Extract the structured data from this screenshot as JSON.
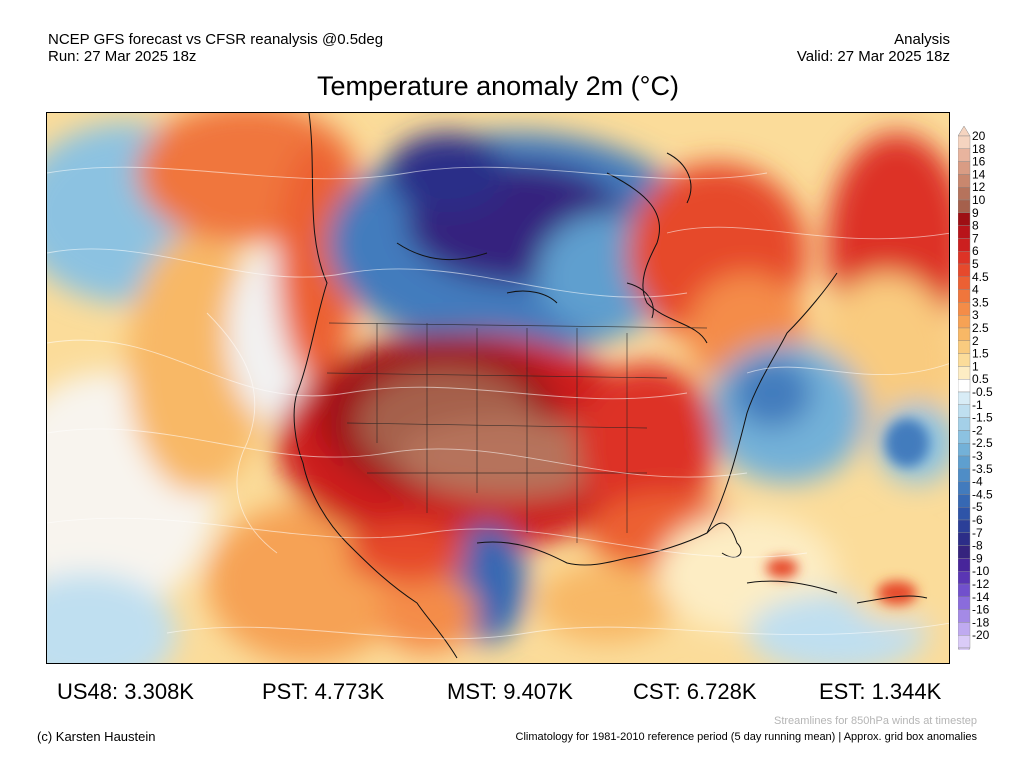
{
  "header": {
    "line1_left": "NCEP GFS forecast vs CFSR reanalysis @0.5deg",
    "line2_left": "Run: 27 Mar 2025 18z",
    "line1_right": "Analysis",
    "line2_right": "Valid: 27 Mar 2025 18z"
  },
  "title": "Temperature anomaly 2m (°C)",
  "colorbar": {
    "labels": [
      "20",
      "18",
      "16",
      "14",
      "12",
      "10",
      "9",
      "8",
      "7",
      "6",
      "5",
      "4.5",
      "4",
      "3.5",
      "3",
      "2.5",
      "2",
      "1.5",
      "1",
      "0.5",
      "-0.5",
      "-1",
      "-1.5",
      "-2",
      "-2.5",
      "-3",
      "-3.5",
      "-4",
      "-4.5",
      "-5",
      "-6",
      "-7",
      "-8",
      "-9",
      "-10",
      "-12",
      "-14",
      "-16",
      "-18",
      "-20"
    ],
    "colors": [
      "#f5d4c0",
      "#e8b49e",
      "#d99c84",
      "#c9876e",
      "#b6735c",
      "#a5604c",
      "#9e0f14",
      "#b8141a",
      "#cc1f1f",
      "#dd3326",
      "#e6492c",
      "#ec6033",
      "#f0763c",
      "#f48c48",
      "#f6a255",
      "#f8b866",
      "#f9cb7f",
      "#fbdc9a",
      "#fdedc4",
      "#ffffff",
      "#d8ecf6",
      "#bfdff0",
      "#a4d0e8",
      "#8cc2e1",
      "#73b1d8",
      "#5e9fcf",
      "#4f8dc6",
      "#427bbd",
      "#3668b3",
      "#2e54a8",
      "#2b3f98",
      "#2c2d88",
      "#35237e",
      "#47259a",
      "#5a36b4",
      "#7150cc",
      "#8a6cdc",
      "#a48ae6",
      "#bfaaf0",
      "#dacbf8"
    ]
  },
  "stats": {
    "us48": "US48: 3.308K",
    "pst": "PST: 4.773K",
    "mst": "MST: 9.407K",
    "cst": "CST: 6.728K",
    "est": "EST: 1.344K"
  },
  "footer": {
    "copyright": "(c) Karsten Haustein",
    "streamlines": "Streamlines for 850hPa winds at timestep",
    "climatology": "Climatology for 1981-2010 reference period (5 day running mean) | Approx. grid box anomalies"
  }
}
